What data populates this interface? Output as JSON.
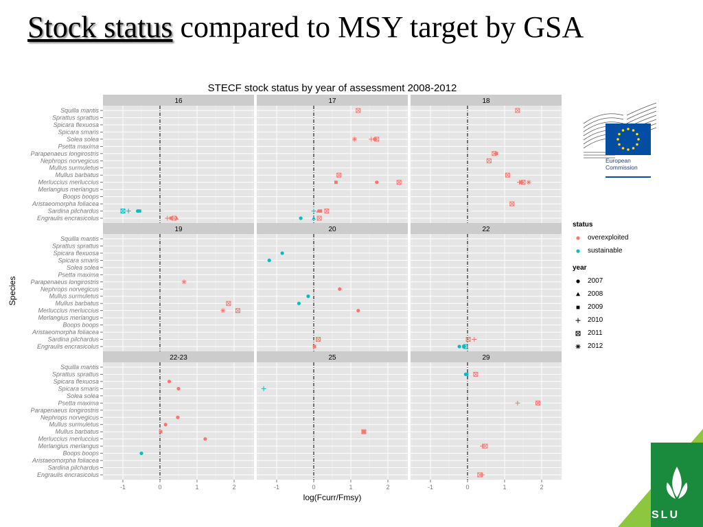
{
  "slide": {
    "title_underlined": "Stock status",
    "title_rest": " compared to MSY target by GSA"
  },
  "logos": {
    "eu_line1": "European",
    "eu_line2": "Commission",
    "slu": "SLU"
  },
  "legend": {
    "status_title": "status",
    "status_items": [
      {
        "label": "overexploited",
        "color": "#F8766D"
      },
      {
        "label": "sustainable",
        "color": "#00BFC4"
      }
    ],
    "year_title": "year",
    "year_items": [
      {
        "label": "2007",
        "shape": "circle"
      },
      {
        "label": "2008",
        "shape": "triangle"
      },
      {
        "label": "2009",
        "shape": "square"
      },
      {
        "label": "2010",
        "shape": "plus"
      },
      {
        "label": "2011",
        "shape": "boxed-x"
      },
      {
        "label": "2012",
        "shape": "asterisk"
      }
    ]
  },
  "chart_data": {
    "type": "scatter",
    "title": "STECF stock status by year of assessment 2008-2012",
    "xlabel": "log(Fcurr/Fmsy)",
    "ylabel": "Species",
    "xlim": [
      -1.5,
      2.5
    ],
    "x_ticks": [
      "-1",
      "0",
      "1",
      "2"
    ],
    "reference_line_x": 0,
    "species": [
      "Squilla mantis",
      "Sprattus sprattus",
      "Spicara flexuosa",
      "Spicara smaris",
      "Solea solea",
      "Psetta maxima",
      "Parapenaeus longirostris",
      "Nephrops norvegicus",
      "Mullus surmuletus",
      "Mullus barbatus",
      "Merluccius merluccius",
      "Merlangius merlangus",
      "Boops boops",
      "Aristaeomorpha foliacea",
      "Sardina pilchardus",
      "Engraulis encrasicolus"
    ],
    "colors": {
      "overexploited": "#F8766D",
      "sustainable": "#00BFC4"
    },
    "panels": [
      {
        "label": "16",
        "points": [
          {
            "species": "Sardina pilchardus",
            "x": -1.0,
            "year": "2011",
            "status": "sustainable"
          },
          {
            "species": "Sardina pilchardus",
            "x": -0.85,
            "year": "2010",
            "status": "sustainable"
          },
          {
            "species": "Sardina pilchardus",
            "x": -0.6,
            "year": "2007",
            "status": "sustainable"
          },
          {
            "species": "Sardina pilchardus",
            "x": -0.55,
            "year": "2009",
            "status": "sustainable"
          },
          {
            "species": "Engraulis encrasicolus",
            "x": 0.2,
            "year": "2010",
            "status": "overexploited"
          },
          {
            "species": "Engraulis encrasicolus",
            "x": 0.3,
            "year": "2009",
            "status": "overexploited"
          },
          {
            "species": "Engraulis encrasicolus",
            "x": 0.38,
            "year": "2011",
            "status": "overexploited"
          },
          {
            "species": "Engraulis encrasicolus",
            "x": 0.45,
            "year": "2008",
            "status": "overexploited"
          }
        ]
      },
      {
        "label": "17",
        "points": [
          {
            "species": "Squilla mantis",
            "x": 1.2,
            "year": "2011",
            "status": "overexploited"
          },
          {
            "species": "Solea solea",
            "x": 1.1,
            "year": "2012",
            "status": "overexploited"
          },
          {
            "species": "Solea solea",
            "x": 1.55,
            "year": "2010",
            "status": "overexploited"
          },
          {
            "species": "Solea solea",
            "x": 1.65,
            "year": "2009",
            "status": "overexploited"
          },
          {
            "species": "Solea solea",
            "x": 1.7,
            "year": "2011",
            "status": "overexploited"
          },
          {
            "species": "Mullus barbatus",
            "x": 0.68,
            "year": "2011",
            "status": "overexploited"
          },
          {
            "species": "Merluccius merluccius",
            "x": 0.6,
            "year": "2009",
            "status": "overexploited"
          },
          {
            "species": "Merluccius merluccius",
            "x": 1.7,
            "year": "2007",
            "status": "overexploited"
          },
          {
            "species": "Merluccius merluccius",
            "x": 2.3,
            "year": "2011",
            "status": "overexploited"
          },
          {
            "species": "Sardina pilchardus",
            "x": 0.0,
            "year": "2010",
            "status": "sustainable"
          },
          {
            "species": "Sardina pilchardus",
            "x": 0.12,
            "year": "2008",
            "status": "overexploited"
          },
          {
            "species": "Sardina pilchardus",
            "x": 0.18,
            "year": "2009",
            "status": "overexploited"
          },
          {
            "species": "Sardina pilchardus",
            "x": 0.35,
            "year": "2011",
            "status": "overexploited"
          },
          {
            "species": "Engraulis encrasicolus",
            "x": -0.35,
            "year": "2007",
            "status": "sustainable"
          },
          {
            "species": "Engraulis encrasicolus",
            "x": 0.0,
            "year": "2008",
            "status": "sustainable"
          },
          {
            "species": "Engraulis encrasicolus",
            "x": 0.15,
            "year": "2011",
            "status": "overexploited"
          }
        ]
      },
      {
        "label": "18",
        "points": [
          {
            "species": "Squilla mantis",
            "x": 1.35,
            "year": "2011",
            "status": "overexploited"
          },
          {
            "species": "Parapenaeus longirostris",
            "x": 0.72,
            "year": "2011",
            "status": "overexploited"
          },
          {
            "species": "Parapenaeus longirostris",
            "x": 0.78,
            "year": "2009",
            "status": "overexploited"
          },
          {
            "species": "Nephrops norvegicus",
            "x": 0.58,
            "year": "2011",
            "status": "overexploited"
          },
          {
            "species": "Mullus barbatus",
            "x": 1.08,
            "year": "2011",
            "status": "overexploited"
          },
          {
            "species": "Merluccius merluccius",
            "x": 1.4,
            "year": "2010",
            "status": "overexploited"
          },
          {
            "species": "Merluccius merluccius",
            "x": 1.45,
            "year": "2009",
            "status": "overexploited"
          },
          {
            "species": "Merluccius merluccius",
            "x": 1.5,
            "year": "2011",
            "status": "overexploited"
          },
          {
            "species": "Merluccius merluccius",
            "x": 1.65,
            "year": "2012",
            "status": "overexploited"
          },
          {
            "species": "Aristaeomorpha foliacea",
            "x": 1.2,
            "year": "2011",
            "status": "overexploited"
          }
        ]
      },
      {
        "label": "19",
        "points": [
          {
            "species": "Parapenaeus longirostris",
            "x": 0.65,
            "year": "2012",
            "status": "overexploited"
          },
          {
            "species": "Mullus barbatus",
            "x": 1.85,
            "year": "2011",
            "status": "overexploited"
          },
          {
            "species": "Merluccius merluccius",
            "x": 1.7,
            "year": "2012",
            "status": "overexploited"
          },
          {
            "species": "Merluccius merluccius",
            "x": 2.1,
            "year": "2011",
            "status": "overexploited"
          }
        ]
      },
      {
        "label": "20",
        "points": [
          {
            "species": "Spicara flexuosa",
            "x": -0.85,
            "year": "2007",
            "status": "sustainable"
          },
          {
            "species": "Spicara smaris",
            "x": -1.2,
            "year": "2007",
            "status": "sustainable"
          },
          {
            "species": "Nephrops norvegicus",
            "x": 0.7,
            "year": "2007",
            "status": "overexploited"
          },
          {
            "species": "Mullus surmuletus",
            "x": -0.15,
            "year": "2007",
            "status": "sustainable"
          },
          {
            "species": "Mullus barbatus",
            "x": -0.4,
            "year": "2007",
            "status": "sustainable"
          },
          {
            "species": "Merluccius merluccius",
            "x": 1.2,
            "year": "2007",
            "status": "overexploited"
          },
          {
            "species": "Sardina pilchardus",
            "x": 0.12,
            "year": "2011",
            "status": "overexploited"
          },
          {
            "species": "Engraulis encrasicolus",
            "x": 0.02,
            "year": "2009",
            "status": "overexploited"
          }
        ]
      },
      {
        "label": "22",
        "points": [
          {
            "species": "Sardina pilchardus",
            "x": 0.02,
            "year": "2011",
            "status": "overexploited"
          },
          {
            "species": "Sardina pilchardus",
            "x": 0.18,
            "year": "2010",
            "status": "overexploited"
          },
          {
            "species": "Engraulis encrasicolus",
            "x": -0.22,
            "year": "2007",
            "status": "sustainable"
          },
          {
            "species": "Engraulis encrasicolus",
            "x": -0.1,
            "year": "2009",
            "status": "sustainable"
          },
          {
            "species": "Engraulis encrasicolus",
            "x": -0.05,
            "year": "2011",
            "status": "sustainable"
          }
        ]
      },
      {
        "label": "22-23",
        "points": [
          {
            "species": "Spicara flexuosa",
            "x": 0.25,
            "year": "2007",
            "status": "overexploited"
          },
          {
            "species": "Spicara smaris",
            "x": 0.5,
            "year": "2007",
            "status": "overexploited"
          },
          {
            "species": "Nephrops norvegicus",
            "x": 0.48,
            "year": "2007",
            "status": "overexploited"
          },
          {
            "species": "Mullus surmuletus",
            "x": 0.15,
            "year": "2007",
            "status": "overexploited"
          },
          {
            "species": "Mullus barbatus",
            "x": 0.02,
            "year": "2009",
            "status": "overexploited"
          },
          {
            "species": "Merluccius merluccius",
            "x": 1.22,
            "year": "2007",
            "status": "overexploited"
          },
          {
            "species": "Boops boops",
            "x": -0.5,
            "year": "2007",
            "status": "sustainable"
          }
        ]
      },
      {
        "label": "25",
        "points": [
          {
            "species": "Spicara smaris",
            "x": -1.35,
            "year": "2010",
            "status": "sustainable"
          },
          {
            "species": "Mullus barbatus",
            "x": 1.35,
            "year": "2009",
            "status": "overexploited"
          },
          {
            "species": "Mullus barbatus",
            "x": 1.35,
            "year": "2011",
            "status": "overexploited"
          }
        ]
      },
      {
        "label": "29",
        "points": [
          {
            "species": "Sprattus sprattus",
            "x": -0.05,
            "year": "2007",
            "status": "sustainable"
          },
          {
            "species": "Sprattus sprattus",
            "x": -0.02,
            "year": "2009",
            "status": "sustainable"
          },
          {
            "species": "Sprattus sprattus",
            "x": 0.22,
            "year": "2011",
            "status": "overexploited"
          },
          {
            "species": "Psetta maxima",
            "x": 1.35,
            "year": "2010",
            "status": "overexploited"
          },
          {
            "species": "Psetta maxima",
            "x": 1.9,
            "year": "2011",
            "status": "overexploited"
          },
          {
            "species": "Merlangius merlangus",
            "x": 0.4,
            "year": "2010",
            "status": "overexploited"
          },
          {
            "species": "Merlangius merlangus",
            "x": 0.48,
            "year": "2011",
            "status": "overexploited"
          },
          {
            "species": "Engraulis encrasicolus",
            "x": 0.33,
            "year": "2011",
            "status": "overexploited"
          },
          {
            "species": "Engraulis encrasicolus",
            "x": 0.4,
            "year": "2010",
            "status": "overexploited"
          }
        ]
      }
    ]
  }
}
